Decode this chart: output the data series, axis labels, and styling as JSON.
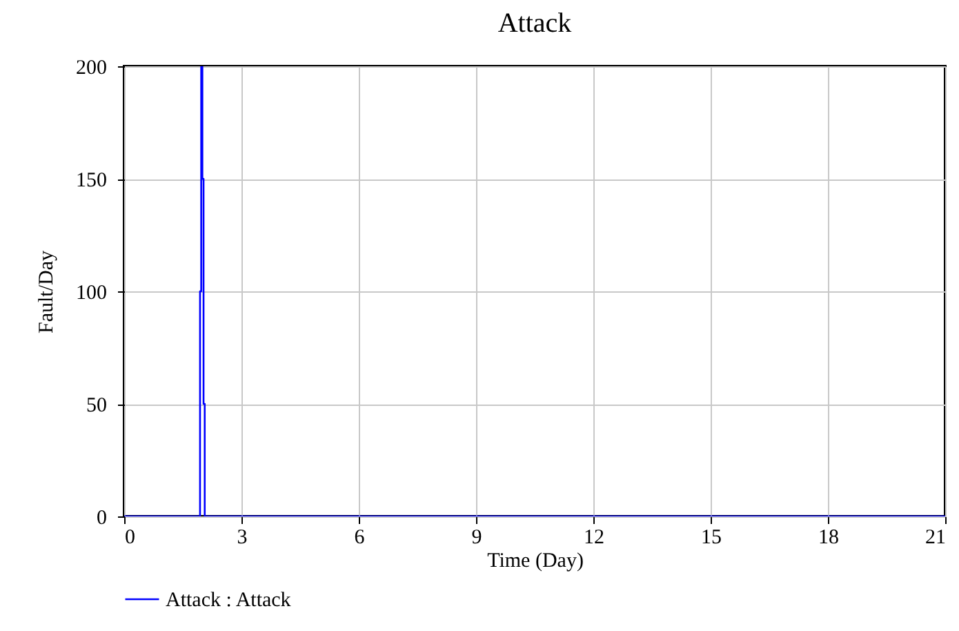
{
  "chart_data": {
    "type": "line",
    "title": "Attack",
    "xlabel": "Time (Day)",
    "ylabel": "Fault/Day",
    "xlim": [
      0,
      21
    ],
    "xticks": [
      0,
      3,
      6,
      9,
      12,
      15,
      18,
      21
    ],
    "ylim": [
      0,
      200
    ],
    "yticks": [
      0,
      50,
      100,
      150,
      200
    ],
    "grid": true,
    "legend": "bottom",
    "series": [
      {
        "name": "Attack : Attack",
        "color": "#0000ff",
        "x": [
          0,
          1.94,
          1.94,
          1.97,
          1.97,
          2.0,
          2.0,
          2.03,
          2.03,
          2.06,
          2.06,
          21
        ],
        "values": [
          0,
          0,
          100,
          100,
          200,
          200,
          150,
          150,
          50,
          50,
          0,
          0
        ]
      }
    ]
  }
}
